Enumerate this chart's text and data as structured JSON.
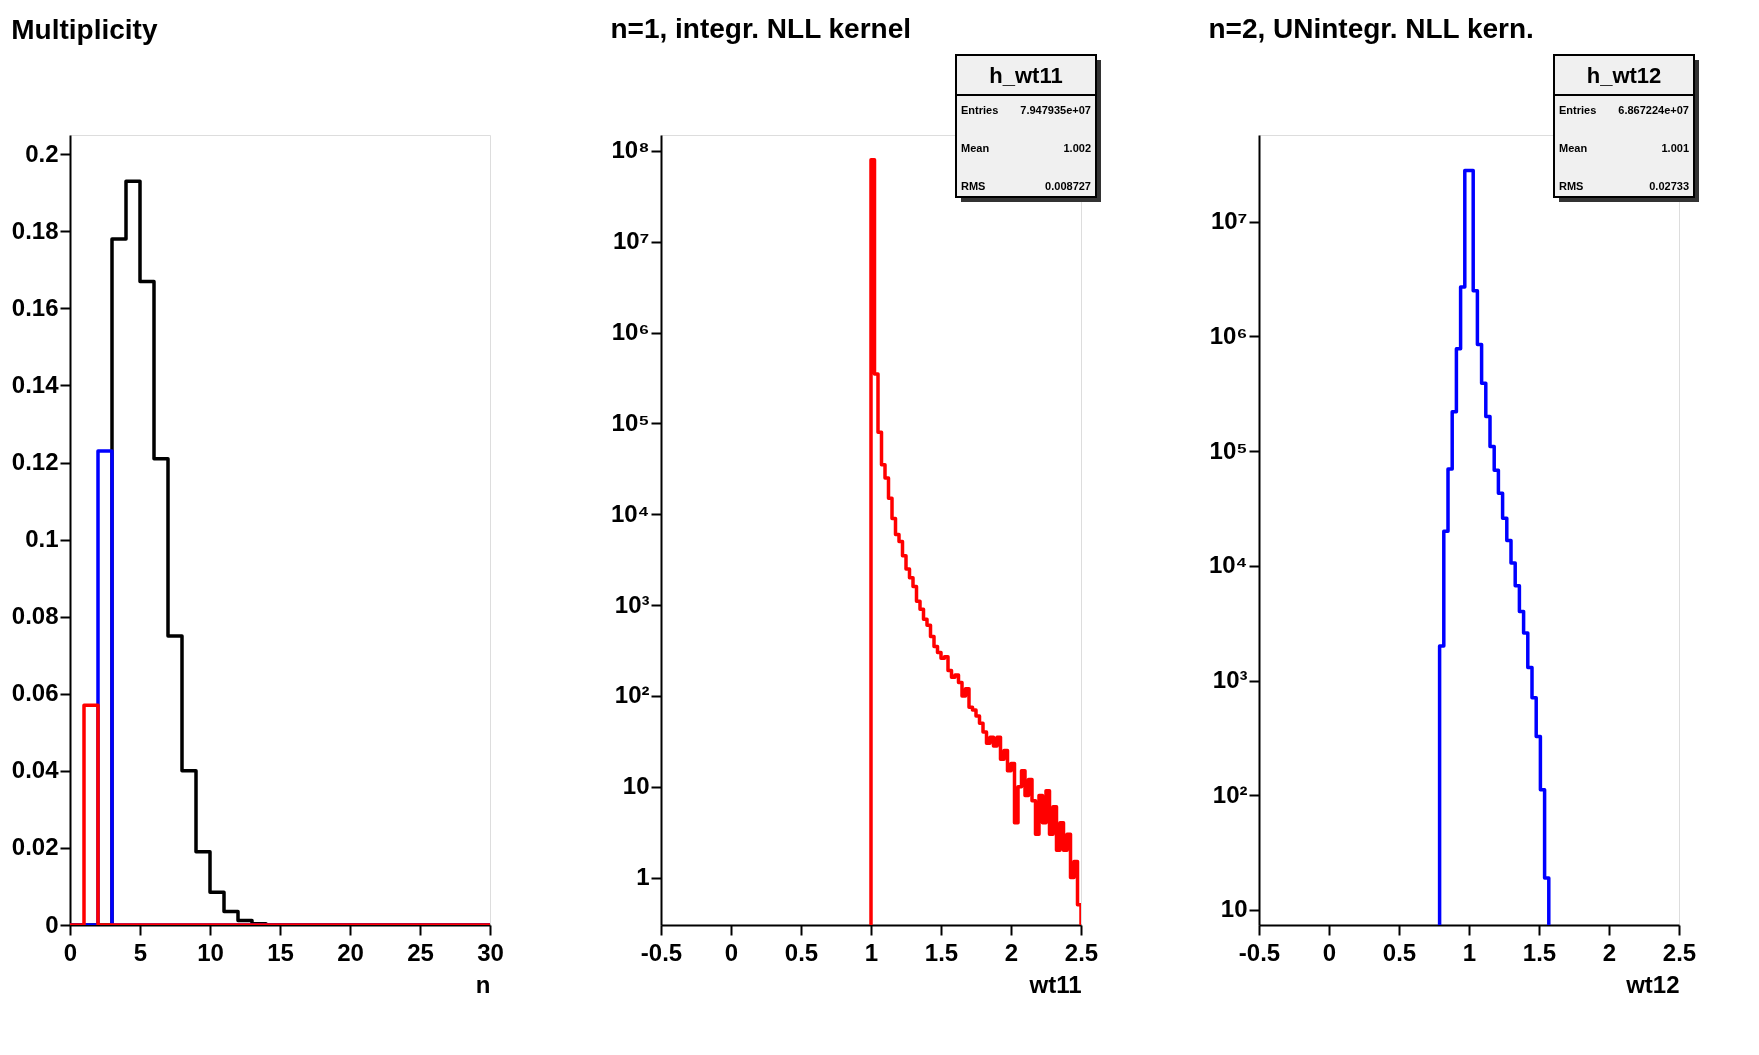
{
  "chart_data": [
    {
      "type": "histogram",
      "title": "Multiplicity",
      "xlabel": "n",
      "xlim": [
        0,
        30
      ],
      "ylim": [
        0,
        0.205
      ],
      "xticks": [
        0,
        5,
        10,
        15,
        20,
        25,
        30
      ],
      "yticks": [
        0,
        0.02,
        0.04,
        0.06,
        0.08,
        0.1,
        0.12,
        0.14,
        0.16,
        0.18,
        0.2
      ],
      "grid": false,
      "bins": [
        0,
        1,
        2,
        3,
        4,
        5,
        6,
        7,
        8,
        9,
        10,
        11,
        12,
        13,
        14,
        15,
        16,
        17,
        18,
        19,
        20,
        21,
        22,
        23,
        24,
        25,
        26,
        27,
        28,
        29,
        30
      ],
      "series": [
        {
          "color": "#000000",
          "values": [
            0,
            0,
            0,
            0.178,
            0.193,
            0.167,
            0.121,
            0.075,
            0.04,
            0.019,
            0.0085,
            0.0035,
            0.0012,
            0.0003,
            0,
            0,
            0,
            0,
            0,
            0,
            0,
            0,
            0,
            0,
            0,
            0,
            0,
            0,
            0,
            0
          ]
        },
        {
          "color": "#0000ff",
          "values": [
            0,
            0,
            0.123,
            0,
            0,
            0,
            0,
            0,
            0,
            0,
            0,
            0,
            0,
            0,
            0,
            0,
            0,
            0,
            0,
            0,
            0,
            0,
            0,
            0,
            0,
            0,
            0,
            0,
            0,
            0
          ]
        },
        {
          "color": "#ff0000",
          "values": [
            0,
            0.057,
            0,
            0,
            0,
            0,
            0,
            0,
            0,
            0,
            0,
            0,
            0,
            0,
            0,
            0,
            0,
            0,
            0,
            0,
            0,
            0,
            0,
            0,
            0,
            0,
            0,
            0,
            0,
            0
          ]
        }
      ]
    },
    {
      "type": "histogram",
      "title": "n=1, integr. NLL kernel",
      "xlabel": "wt11",
      "log": true,
      "xlim": [
        -0.5,
        2.5
      ],
      "ylim": [
        0.3,
        150000000
      ],
      "xticks": [
        -0.5,
        0,
        0.5,
        1,
        1.5,
        2,
        2.5
      ],
      "yticks": [
        1,
        10,
        {
          "value": 100,
          "label": "10²"
        },
        {
          "value": 1000,
          "label": "10³"
        },
        {
          "value": 10000,
          "label": "10⁴"
        },
        {
          "value": 100000,
          "label": "10⁵"
        },
        {
          "value": 1000000,
          "label": "10⁶"
        },
        {
          "value": 10000000,
          "label": "10⁷"
        },
        {
          "value": 100000000,
          "label": "10⁸"
        }
      ],
      "grid": false,
      "bins": [
        1.0,
        1.025,
        1.05,
        1.075,
        1.1,
        1.125,
        1.15,
        1.175,
        1.2,
        1.225,
        1.25,
        1.275,
        1.3,
        1.325,
        1.35,
        1.375,
        1.4,
        1.425,
        1.45,
        1.475,
        1.5,
        1.525,
        1.55,
        1.575,
        1.6,
        1.625,
        1.65,
        1.675,
        1.7,
        1.725,
        1.75,
        1.775,
        1.8,
        1.825,
        1.85,
        1.875,
        1.9,
        1.925,
        1.95,
        1.975,
        2.0,
        2.025,
        2.05,
        2.075,
        2.1,
        2.125,
        2.15,
        2.175,
        2.2,
        2.225,
        2.25,
        2.275,
        2.3,
        2.325,
        2.35,
        2.375,
        2.4,
        2.425,
        2.45,
        2.475,
        2.5
      ],
      "series": [
        {
          "color": "#ff0000",
          "values": [
            80000000,
            350000,
            80000,
            35000,
            25000,
            15000,
            9000,
            6000,
            5000,
            3500,
            2500,
            2000,
            1600,
            1100,
            900,
            700,
            600,
            450,
            350,
            300,
            260,
            270,
            190,
            160,
            170,
            140,
            100,
            120,
            75,
            70,
            60,
            50,
            40,
            30,
            35,
            28,
            35,
            20,
            25,
            15,
            18,
            4,
            10,
            15,
            8,
            12,
            7,
            3,
            8,
            4,
            9,
            3,
            6,
            2,
            4,
            2,
            3,
            1,
            1.5,
            0.5
          ]
        }
      ],
      "annotations": [
        "h_wt11",
        "Entries",
        "7.947935e+07",
        "Mean",
        "1.002",
        "RMS",
        "0.008727"
      ]
    },
    {
      "type": "histogram",
      "title": "n=2, UNintegr. NLL kern.",
      "xlabel": "wt12",
      "log": true,
      "xlim": [
        -0.5,
        2.5
      ],
      "ylim": [
        7.4,
        57000000
      ],
      "xticks": [
        -0.5,
        0,
        0.5,
        1,
        1.5,
        2,
        2.5
      ],
      "yticks": [
        10,
        {
          "value": 100,
          "label": "10²"
        },
        {
          "value": 1000,
          "label": "10³"
        },
        {
          "value": 10000,
          "label": "10⁴"
        },
        {
          "value": 100000,
          "label": "10⁵"
        },
        {
          "value": 1000000,
          "label": "10⁶"
        },
        {
          "value": 10000000,
          "label": "10⁷"
        }
      ],
      "grid": false,
      "bins": [
        0.79,
        0.82,
        0.85,
        0.88,
        0.91,
        0.94,
        0.97,
        1.0,
        1.03,
        1.06,
        1.09,
        1.12,
        1.15,
        1.18,
        1.21,
        1.24,
        1.27,
        1.3,
        1.33,
        1.36,
        1.39,
        1.42,
        1.45,
        1.48,
        1.51,
        1.54,
        1.57
      ],
      "series": [
        {
          "color": "#0000ff",
          "values": [
            2000,
            20000,
            70000,
            220000,
            780000,
            2700000,
            28000000,
            28000000,
            2500000,
            850000,
            390000,
            200000,
            110000,
            68000,
            43000,
            26000,
            16600,
            10600,
            6700,
            4000,
            2600,
            1300,
            710,
            325,
            112,
            19
          ]
        }
      ],
      "annotations": [
        "h_wt12",
        "Entries",
        "6.867224e+07",
        "Mean",
        "1.001",
        "RMS",
        "0.02733"
      ]
    }
  ]
}
